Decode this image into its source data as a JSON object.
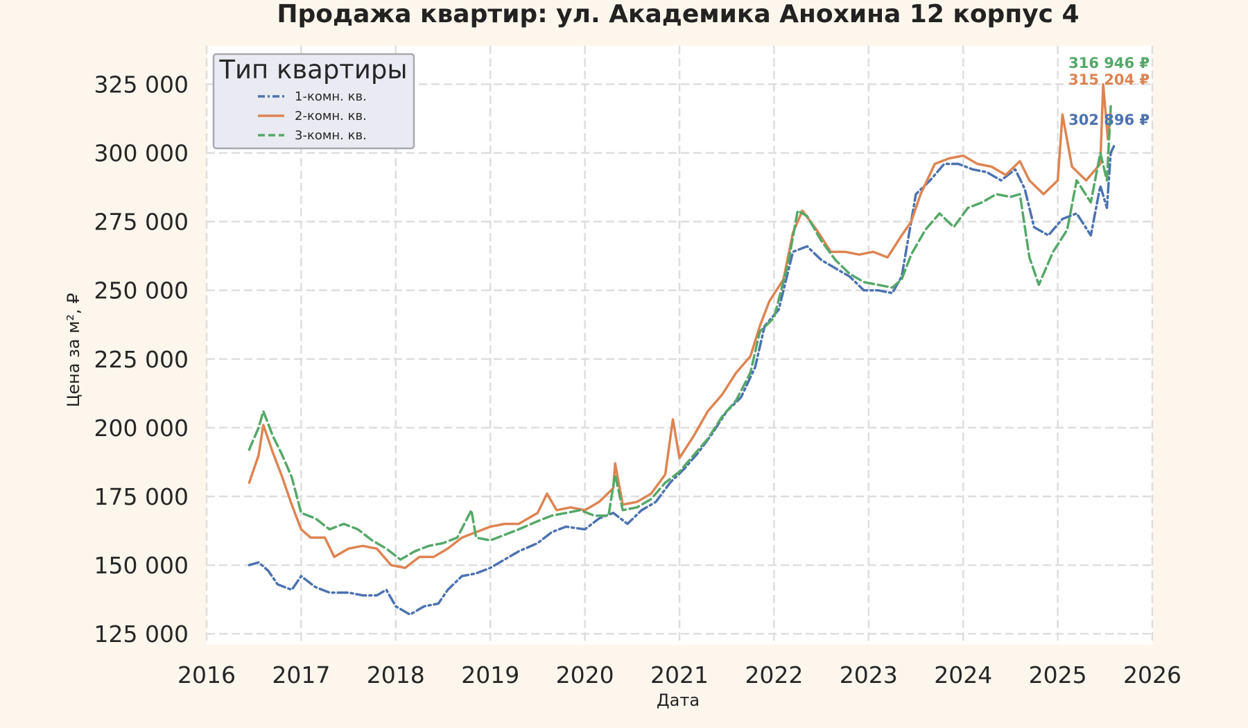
{
  "chart_data": {
    "type": "line",
    "title": "Продажа квартир: ул. Академика Анохина 12 корпус 4",
    "xlabel": "Дата",
    "ylabel": "Цена за м², ₽",
    "xlim": [
      2016,
      2026
    ],
    "ylim": [
      121000,
      339000
    ],
    "x_ticks": [
      "2016",
      "2017",
      "2018",
      "2019",
      "2020",
      "2021",
      "2022",
      "2023",
      "2024",
      "2025",
      "2026"
    ],
    "y_ticks": [
      {
        "value": 125000,
        "label": "125 000"
      },
      {
        "value": 150000,
        "label": "150 000"
      },
      {
        "value": 175000,
        "label": "175 000"
      },
      {
        "value": 200000,
        "label": "200 000"
      },
      {
        "value": 225000,
        "label": "225 000"
      },
      {
        "value": 250000,
        "label": "250 000"
      },
      {
        "value": 275000,
        "label": "275 000"
      },
      {
        "value": 300000,
        "label": "300 000"
      },
      {
        "value": 325000,
        "label": "325 000"
      }
    ],
    "grid": true,
    "legend": {
      "title": "Тип квартиры",
      "placement": "top-left"
    },
    "series": [
      {
        "name": "1-комн. кв.",
        "color": "#4c72b0",
        "style": "dashdot",
        "end_label": "302 896 ₽",
        "points": [
          [
            2016.45,
            150000
          ],
          [
            2016.55,
            151000
          ],
          [
            2016.65,
            148000
          ],
          [
            2016.75,
            143000
          ],
          [
            2016.9,
            141000
          ],
          [
            2017.0,
            146000
          ],
          [
            2017.15,
            142000
          ],
          [
            2017.3,
            140000
          ],
          [
            2017.5,
            140000
          ],
          [
            2017.65,
            139000
          ],
          [
            2017.8,
            139000
          ],
          [
            2017.9,
            141000
          ],
          [
            2018.0,
            135000
          ],
          [
            2018.15,
            132000
          ],
          [
            2018.3,
            135000
          ],
          [
            2018.45,
            136000
          ],
          [
            2018.55,
            141000
          ],
          [
            2018.7,
            146000
          ],
          [
            2018.85,
            147000
          ],
          [
            2019.0,
            149000
          ],
          [
            2019.15,
            152000
          ],
          [
            2019.3,
            155000
          ],
          [
            2019.5,
            158000
          ],
          [
            2019.65,
            162000
          ],
          [
            2019.8,
            164000
          ],
          [
            2020.0,
            163000
          ],
          [
            2020.15,
            167000
          ],
          [
            2020.3,
            169000
          ],
          [
            2020.45,
            165000
          ],
          [
            2020.6,
            170000
          ],
          [
            2020.75,
            173000
          ],
          [
            2020.9,
            180000
          ],
          [
            2021.05,
            185000
          ],
          [
            2021.2,
            191000
          ],
          [
            2021.35,
            198000
          ],
          [
            2021.5,
            206000
          ],
          [
            2021.65,
            211000
          ],
          [
            2021.8,
            222000
          ],
          [
            2021.9,
            237000
          ],
          [
            2022.05,
            243000
          ],
          [
            2022.2,
            264000
          ],
          [
            2022.35,
            266000
          ],
          [
            2022.5,
            261000
          ],
          [
            2022.65,
            258000
          ],
          [
            2022.8,
            255000
          ],
          [
            2022.95,
            250000
          ],
          [
            2023.1,
            250000
          ],
          [
            2023.25,
            249000
          ],
          [
            2023.35,
            255000
          ],
          [
            2023.5,
            285000
          ],
          [
            2023.65,
            290000
          ],
          [
            2023.8,
            296000
          ],
          [
            2023.95,
            296000
          ],
          [
            2024.1,
            294000
          ],
          [
            2024.25,
            293000
          ],
          [
            2024.4,
            290000
          ],
          [
            2024.55,
            294000
          ],
          [
            2024.65,
            287000
          ],
          [
            2024.75,
            273000
          ],
          [
            2024.9,
            270000
          ],
          [
            2025.05,
            276000
          ],
          [
            2025.2,
            278000
          ],
          [
            2025.35,
            270000
          ],
          [
            2025.45,
            288000
          ],
          [
            2025.52,
            280000
          ],
          [
            2025.56,
            300000
          ],
          [
            2025.6,
            302896
          ]
        ]
      },
      {
        "name": "2-комн. кв.",
        "color": "#dd8452",
        "style": "solid",
        "end_label": "315 204 ₽",
        "points": [
          [
            2016.45,
            180000
          ],
          [
            2016.55,
            190000
          ],
          [
            2016.6,
            201000
          ],
          [
            2016.7,
            191000
          ],
          [
            2016.8,
            182000
          ],
          [
            2016.9,
            172000
          ],
          [
            2017.0,
            163000
          ],
          [
            2017.1,
            160000
          ],
          [
            2017.25,
            160000
          ],
          [
            2017.35,
            153000
          ],
          [
            2017.5,
            156000
          ],
          [
            2017.65,
            157000
          ],
          [
            2017.8,
            156000
          ],
          [
            2017.95,
            150000
          ],
          [
            2018.1,
            149000
          ],
          [
            2018.25,
            153000
          ],
          [
            2018.4,
            153000
          ],
          [
            2018.55,
            156000
          ],
          [
            2018.7,
            160000
          ],
          [
            2018.85,
            162000
          ],
          [
            2019.0,
            164000
          ],
          [
            2019.15,
            165000
          ],
          [
            2019.3,
            165000
          ],
          [
            2019.5,
            169000
          ],
          [
            2019.6,
            176000
          ],
          [
            2019.7,
            170000
          ],
          [
            2019.85,
            171000
          ],
          [
            2020.0,
            170000
          ],
          [
            2020.15,
            173000
          ],
          [
            2020.3,
            178000
          ],
          [
            2020.32,
            187000
          ],
          [
            2020.4,
            172000
          ],
          [
            2020.55,
            173000
          ],
          [
            2020.7,
            176000
          ],
          [
            2020.85,
            183000
          ],
          [
            2020.93,
            203000
          ],
          [
            2021.0,
            189000
          ],
          [
            2021.15,
            197000
          ],
          [
            2021.3,
            206000
          ],
          [
            2021.45,
            212000
          ],
          [
            2021.6,
            220000
          ],
          [
            2021.75,
            226000
          ],
          [
            2021.85,
            237000
          ],
          [
            2021.95,
            246000
          ],
          [
            2022.1,
            254000
          ],
          [
            2022.2,
            271000
          ],
          [
            2022.3,
            279000
          ],
          [
            2022.45,
            272000
          ],
          [
            2022.6,
            264000
          ],
          [
            2022.75,
            264000
          ],
          [
            2022.9,
            263000
          ],
          [
            2023.05,
            264000
          ],
          [
            2023.2,
            262000
          ],
          [
            2023.35,
            270000
          ],
          [
            2023.45,
            275000
          ],
          [
            2023.55,
            285000
          ],
          [
            2023.7,
            296000
          ],
          [
            2023.85,
            298000
          ],
          [
            2024.0,
            299000
          ],
          [
            2024.15,
            296000
          ],
          [
            2024.3,
            295000
          ],
          [
            2024.45,
            292000
          ],
          [
            2024.6,
            297000
          ],
          [
            2024.7,
            290000
          ],
          [
            2024.85,
            285000
          ],
          [
            2025.0,
            290000
          ],
          [
            2025.05,
            314000
          ],
          [
            2025.15,
            295000
          ],
          [
            2025.3,
            290000
          ],
          [
            2025.45,
            296000
          ],
          [
            2025.48,
            325000
          ],
          [
            2025.53,
            305000
          ],
          [
            2025.56,
            315204
          ]
        ]
      },
      {
        "name": "3-комн. кв.",
        "color": "#55a868",
        "style": "dashed",
        "end_label": "316 946 ₽",
        "points": [
          [
            2016.45,
            192000
          ],
          [
            2016.55,
            200000
          ],
          [
            2016.6,
            206000
          ],
          [
            2016.7,
            197000
          ],
          [
            2016.8,
            190000
          ],
          [
            2016.9,
            182000
          ],
          [
            2017.0,
            169000
          ],
          [
            2017.15,
            167000
          ],
          [
            2017.3,
            163000
          ],
          [
            2017.45,
            165000
          ],
          [
            2017.6,
            163000
          ],
          [
            2017.75,
            159000
          ],
          [
            2017.9,
            156000
          ],
          [
            2018.05,
            152000
          ],
          [
            2018.2,
            155000
          ],
          [
            2018.35,
            157000
          ],
          [
            2018.5,
            158000
          ],
          [
            2018.65,
            160000
          ],
          [
            2018.8,
            170000
          ],
          [
            2018.85,
            160000
          ],
          [
            2019.0,
            159000
          ],
          [
            2019.15,
            161000
          ],
          [
            2019.3,
            163000
          ],
          [
            2019.5,
            166000
          ],
          [
            2019.65,
            168000
          ],
          [
            2019.8,
            169000
          ],
          [
            2019.95,
            170000
          ],
          [
            2020.1,
            168000
          ],
          [
            2020.25,
            168000
          ],
          [
            2020.32,
            183000
          ],
          [
            2020.4,
            170000
          ],
          [
            2020.55,
            171000
          ],
          [
            2020.7,
            174000
          ],
          [
            2020.85,
            180000
          ],
          [
            2021.0,
            184000
          ],
          [
            2021.15,
            190000
          ],
          [
            2021.3,
            196000
          ],
          [
            2021.45,
            204000
          ],
          [
            2021.6,
            210000
          ],
          [
            2021.75,
            220000
          ],
          [
            2021.85,
            235000
          ],
          [
            2022.0,
            240000
          ],
          [
            2022.15,
            260000
          ],
          [
            2022.25,
            279000
          ],
          [
            2022.35,
            277000
          ],
          [
            2022.5,
            268000
          ],
          [
            2022.65,
            261000
          ],
          [
            2022.8,
            256000
          ],
          [
            2022.95,
            253000
          ],
          [
            2023.1,
            252000
          ],
          [
            2023.25,
            251000
          ],
          [
            2023.35,
            254000
          ],
          [
            2023.45,
            263000
          ],
          [
            2023.6,
            272000
          ],
          [
            2023.75,
            278000
          ],
          [
            2023.9,
            273000
          ],
          [
            2024.05,
            280000
          ],
          [
            2024.2,
            282000
          ],
          [
            2024.35,
            285000
          ],
          [
            2024.5,
            284000
          ],
          [
            2024.6,
            285000
          ],
          [
            2024.7,
            262000
          ],
          [
            2024.8,
            252000
          ],
          [
            2024.95,
            264000
          ],
          [
            2025.1,
            272000
          ],
          [
            2025.2,
            290000
          ],
          [
            2025.35,
            282000
          ],
          [
            2025.45,
            300000
          ],
          [
            2025.52,
            290000
          ],
          [
            2025.56,
            316946
          ]
        ]
      }
    ]
  }
}
